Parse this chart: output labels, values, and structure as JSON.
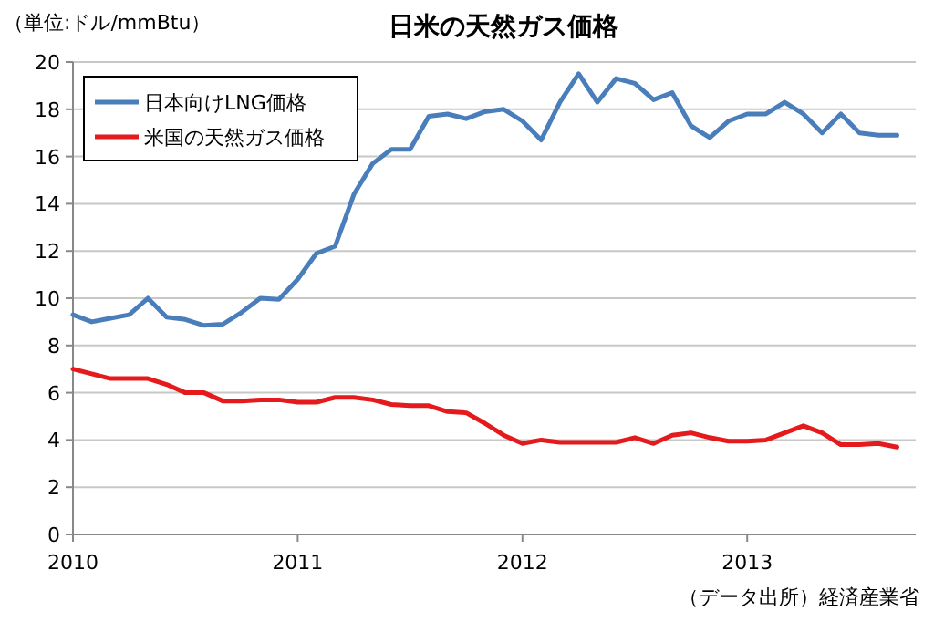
{
  "chart_data": {
    "type": "line",
    "title": "日米の天然ガス価格",
    "ylabel": "（単位:ドル/mmBtu）",
    "annotations": [
      "（データ出所）経済産業省"
    ],
    "x": [
      "2010-01",
      "2010-02",
      "2010-03",
      "2010-04",
      "2010-05",
      "2010-06",
      "2010-07",
      "2010-08",
      "2010-09",
      "2010-10",
      "2010-11",
      "2010-12",
      "2011-01",
      "2011-02",
      "2011-03",
      "2011-04",
      "2011-05",
      "2011-06",
      "2011-07",
      "2011-08",
      "2011-09",
      "2011-10",
      "2011-11",
      "2011-12",
      "2012-01",
      "2012-02",
      "2012-03",
      "2012-04",
      "2012-05",
      "2012-06",
      "2012-07",
      "2012-08",
      "2012-09",
      "2012-10",
      "2012-11",
      "2012-12",
      "2013-01",
      "2013-02",
      "2013-03",
      "2013-04",
      "2013-05",
      "2013-06",
      "2013-07",
      "2013-08",
      "2013-09"
    ],
    "series": [
      {
        "name": "日本向けLNG価格",
        "color": "#4a7ebb",
        "values": [
          9.3,
          9.0,
          9.15,
          9.3,
          10.0,
          9.2,
          9.1,
          8.85,
          8.9,
          9.4,
          10.0,
          9.95,
          10.8,
          11.9,
          12.2,
          14.4,
          15.7,
          16.3,
          16.3,
          17.7,
          17.8,
          17.6,
          17.9,
          18.0,
          17.5,
          16.7,
          18.3,
          19.5,
          18.3,
          19.3,
          19.1,
          18.4,
          18.7,
          17.3,
          16.8,
          17.5,
          17.8,
          17.8,
          18.3,
          17.8,
          17.0,
          17.8,
          17.0,
          16.9,
          16.9
        ]
      },
      {
        "name": "米国の天然ガス価格",
        "color": "#e41a1c",
        "values": [
          7.0,
          6.8,
          6.6,
          6.6,
          6.6,
          6.35,
          6.0,
          6.0,
          5.65,
          5.65,
          5.7,
          5.7,
          5.6,
          5.6,
          5.8,
          5.8,
          5.7,
          5.5,
          5.45,
          5.45,
          5.2,
          5.15,
          4.7,
          4.2,
          3.85,
          4.0,
          3.9,
          3.9,
          3.9,
          3.9,
          4.1,
          3.85,
          4.2,
          4.3,
          4.1,
          3.95,
          3.95,
          4.0,
          4.3,
          4.6,
          4.3,
          3.8,
          3.8,
          3.85,
          3.7
        ]
      }
    ],
    "xlim": [
      "2010-01",
      "2013-10"
    ],
    "xticks": [
      {
        "value": "2010-01",
        "label": "2010"
      },
      {
        "value": "2011-01",
        "label": "2011"
      },
      {
        "value": "2012-01",
        "label": "2012"
      },
      {
        "value": "2013-01",
        "label": "2013"
      }
    ],
    "ylim": [
      0,
      20
    ],
    "yticks": [
      0,
      2,
      4,
      6,
      8,
      10,
      12,
      14,
      16,
      18,
      20
    ],
    "grid": "y",
    "legend": "top left",
    "line_style": "solid",
    "marker": "none"
  }
}
